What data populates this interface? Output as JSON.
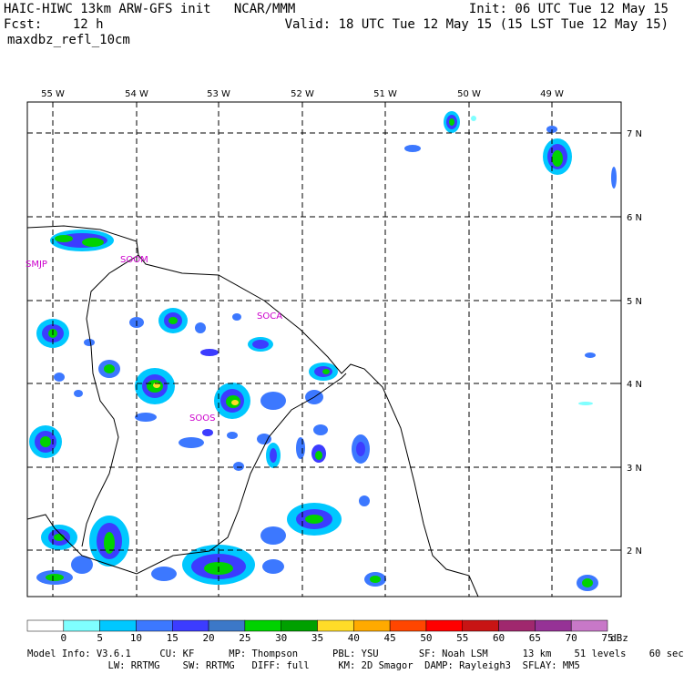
{
  "header": {
    "left_line1": "HAIC-HIWC 13km ARW-GFS init   NCAR/MMM",
    "left_line2": "Fcst:    12 h",
    "left_line3": "maxdbz_refl_10cm",
    "right_line1": "Init: 06 UTC Tue 12 May 15",
    "right_line2": "Valid: 18 UTC Tue 12 May 15 (15 LST Tue 12 May 15)"
  },
  "map": {
    "lon_labels": [
      "55 W",
      "54 W",
      "53 W",
      "52 W",
      "51 W",
      "50 W",
      "49 W"
    ],
    "lat_labels": [
      "7 N",
      "6 N",
      "5 N",
      "4 N",
      "3 N",
      "2 N"
    ],
    "station_labels": [
      "SMJP",
      "SOOM",
      "SOCA",
      "SOOS"
    ]
  },
  "colorbar": {
    "labels": [
      "0",
      "5",
      "10",
      "15",
      "20",
      "25",
      "30",
      "35",
      "40",
      "45",
      "50",
      "55",
      "60",
      "65",
      "70",
      "75"
    ],
    "unit": "dBz",
    "colors": [
      "#ffffff",
      "#7fffff",
      "#00c8ff",
      "#3c78ff",
      "#3c3cff",
      "#3c78c8",
      "#00d200",
      "#00a000",
      "#ffdc28",
      "#ffaa00",
      "#ff4600",
      "#ff0000",
      "#c81414",
      "#a0286e",
      "#963296",
      "#c878c8"
    ]
  },
  "footer": {
    "line1": "Model Info: V3.6.1     CU: KF      MP: Thompson      PBL: YSU       SF: Noah LSM      13 km    51 levels    60 sec",
    "line2": "              LW: RRTMG    SW: RRTMG   DIFF: full     KM: 2D Smagor  DAMP: Rayleigh3  SFLAY: MM5"
  }
}
